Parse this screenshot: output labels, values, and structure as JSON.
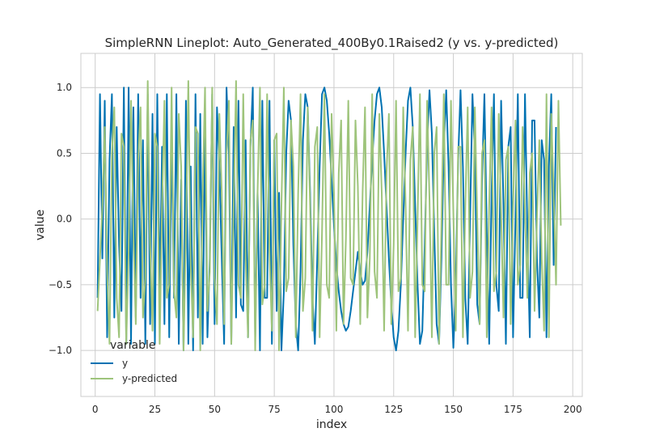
{
  "chart_data": {
    "type": "line",
    "title": "SimpleRNN Lineplot: Auto_Generated_400By0.1Raised2 (y vs. y-predicted)",
    "xlabel": "index",
    "ylabel": "value",
    "xlim": [
      -6,
      204
    ],
    "ylim": [
      -1.35,
      1.26
    ],
    "xticks": [
      0,
      25,
      50,
      75,
      100,
      125,
      150,
      175,
      200
    ],
    "yticks": [
      -1.0,
      -0.5,
      0.0,
      0.5,
      1.0
    ],
    "xtick_labels": [
      "0",
      "25",
      "50",
      "75",
      "100",
      "125",
      "150",
      "175",
      "200"
    ],
    "ytick_labels": [
      "−1.0",
      "−0.5",
      "0.0",
      "0.5",
      "1.0"
    ],
    "grid": true,
    "legend": {
      "title": "variable",
      "placement": "lower-left"
    },
    "colors": {
      "y": "#0072b2",
      "y_predicted": "#9ec47b",
      "grid": "#cccccc",
      "spine": "#cccccc"
    },
    "series": [
      {
        "name": "y",
        "values": [
          -0.6,
          0.95,
          -0.3,
          0.9,
          -0.9,
          0.45,
          0.95,
          -0.75,
          0.7,
          -0.2,
          -0.7,
          1.0,
          -0.95,
          1.0,
          -0.95,
          0.85,
          -0.75,
          0.95,
          -0.6,
          0.6,
          -0.95,
          0.95,
          -0.8,
          0.8,
          -0.95,
          0.95,
          -0.6,
          0.55,
          -0.8,
          0.95,
          -0.9,
          0.65,
          -0.6,
          0.95,
          -0.95,
          0.3,
          -1.0,
          0.9,
          -0.95,
          0.4,
          -1.0,
          0.95,
          -0.75,
          0.8,
          -0.95,
          0.7,
          -0.9,
          -0.3,
          0.95,
          -0.8,
          0.85,
          0.4,
          -0.3,
          -0.95,
          1.0,
          0.5,
          -0.95,
          0.7,
          -0.75,
          0.9,
          -0.65,
          -0.7,
          0.6,
          -0.9,
          0.55,
          1.0,
          -0.9,
          0.2,
          -1.0,
          0.9,
          -0.6,
          -0.6,
          0.9,
          -0.95,
          0.6,
          -0.7,
          0.2,
          -1.0,
          -0.55,
          0.5,
          0.9,
          0.75,
          -0.2,
          -0.8,
          -1.0,
          -0.4,
          0.6,
          0.95,
          0.85,
          0.2,
          -0.6,
          -0.95,
          -0.3,
          0.4,
          0.95,
          1.0,
          0.9,
          0.65,
          0.3,
          -0.05,
          -0.35,
          -0.55,
          -0.7,
          -0.8,
          -0.85,
          -0.82,
          -0.7,
          -0.55,
          -0.4,
          -0.25,
          -0.4,
          -0.5,
          -0.47,
          -0.25,
          0.1,
          0.45,
          0.75,
          0.95,
          1.0,
          0.85,
          0.5,
          0.1,
          -0.3,
          -0.65,
          -0.9,
          -1.0,
          -0.85,
          -0.5,
          0.0,
          0.5,
          0.9,
          1.0,
          0.7,
          0.1,
          -0.5,
          -0.95,
          -0.85,
          -0.2,
          0.55,
          0.98,
          0.65,
          -0.1,
          -0.8,
          -0.95,
          -0.3,
          0.55,
          0.98,
          0.4,
          -0.5,
          -0.98,
          -0.5,
          0.45,
          0.98,
          0.4,
          -0.6,
          -0.95,
          0.0,
          0.95,
          0.5,
          -0.65,
          -0.8,
          0.3,
          0.95,
          -0.1,
          -0.95,
          0.2,
          0.95,
          -0.5,
          -0.7,
          0.9,
          0.1,
          -0.95,
          0.55,
          0.7,
          -0.9,
          0.0,
          0.95,
          -0.6,
          -0.6,
          0.95,
          -0.1,
          -0.9,
          0.75,
          0.75,
          -0.3,
          -0.75,
          0.6,
          0.45,
          -0.9,
          0.4,
          0.95,
          -0.35,
          0.7
        ]
      },
      {
        "name": "y-predicted",
        "values": [
          -0.7,
          -0.3,
          0.1,
          0.7,
          -0.4,
          -0.95,
          0.5,
          0.85,
          -0.6,
          -0.9,
          0.65,
          0.55,
          -0.95,
          -0.25,
          0.9,
          -0.1,
          -0.8,
          0.45,
          0.85,
          -0.75,
          -0.45,
          1.05,
          -0.2,
          -0.85,
          0.65,
          0.55,
          -0.95,
          0.1,
          0.9,
          -0.6,
          -0.5,
          1.0,
          -0.55,
          -0.75,
          0.8,
          0.4,
          -1.0,
          -0.1,
          1.05,
          -0.35,
          -0.9,
          0.7,
          0.65,
          -1.0,
          0.2,
          1.0,
          -0.7,
          -0.4,
          1.0,
          -0.45,
          -0.8,
          0.8,
          0.2,
          -0.8,
          0.5,
          0.9,
          -0.95,
          0.1,
          1.05,
          -0.5,
          -0.6,
          0.95,
          -0.3,
          -0.9,
          0.6,
          0.75,
          -1.0,
          0.2,
          1.0,
          -0.65,
          -0.5,
          0.95,
          -0.25,
          -0.85,
          0.6,
          0.65,
          -1.0,
          0.1,
          1.0,
          -0.55,
          -0.45,
          0.75,
          0.4,
          -0.9,
          0.2,
          0.95,
          -0.7,
          -0.45,
          0.85,
          0.1,
          -0.85,
          0.55,
          0.7,
          -0.9,
          -0.1,
          0.95,
          -0.5,
          -0.6,
          0.8,
          0.2,
          -0.85,
          0.35,
          0.75,
          -0.8,
          -0.15,
          0.9,
          -0.45,
          -0.5,
          0.75,
          0.25,
          -0.8,
          0.2,
          0.85,
          -0.75,
          -0.3,
          0.95,
          -0.4,
          -0.6,
          0.8,
          0.2,
          -0.85,
          0.35,
          0.8,
          -0.8,
          -0.2,
          0.9,
          -0.55,
          -0.45,
          0.85,
          0.1,
          -0.85,
          0.45,
          0.7,
          -0.9,
          0.0,
          0.95,
          -0.5,
          -0.55,
          0.9,
          0.15,
          -0.9,
          0.5,
          0.7,
          -0.95,
          -0.05,
          0.95,
          -0.5,
          -0.5,
          0.9,
          0.05,
          -0.85,
          0.55,
          0.55,
          -0.9,
          0.1,
          0.85,
          -0.6,
          -0.4,
          0.85,
          0.0,
          -0.8,
          0.5,
          0.6,
          -0.9,
          0.1,
          0.85,
          -0.55,
          -0.4,
          0.8,
          0.05,
          -0.75,
          0.45,
          0.55,
          -0.8,
          0.1,
          0.75,
          -0.5,
          -0.35,
          0.7,
          0.05,
          -0.6,
          0.35,
          0.5,
          -0.7,
          0.0,
          0.6,
          -0.3,
          -0.85,
          0.95,
          -0.9,
          0.8,
          0.2,
          -0.5,
          0.9,
          -0.05
        ]
      }
    ]
  }
}
